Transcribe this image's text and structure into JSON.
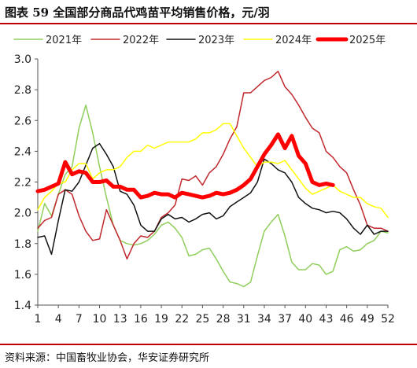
{
  "figure": {
    "title": "图表 59  全国部分商品代鸡苗平均销售价格，元/羽",
    "source": "资料来源：中国畜牧业协会，华安证券研究所"
  },
  "chart_data": {
    "type": "line",
    "title": "全国部分商品代鸡苗平均销售价格，元/羽",
    "xlabel": "",
    "ylabel": "",
    "xlim": [
      1,
      52
    ],
    "ylim": [
      1.4,
      3.0
    ],
    "x_ticks": [
      1,
      4,
      7,
      10,
      13,
      16,
      19,
      22,
      25,
      28,
      31,
      34,
      37,
      40,
      43,
      46,
      49,
      52
    ],
    "y_ticks": [
      1.4,
      1.6,
      1.8,
      2.0,
      2.2,
      2.4,
      2.6,
      2.8,
      3.0
    ],
    "grid": false,
    "legend_position": "top",
    "series": [
      {
        "name": "2021年",
        "color": "#8fce5a",
        "width": 1.5,
        "values": [
          1.88,
          2.06,
          1.98,
          2.12,
          2.25,
          2.3,
          2.55,
          2.7,
          2.52,
          2.3,
          2.1,
          1.92,
          1.82,
          1.8,
          1.79,
          1.8,
          1.82,
          1.86,
          1.92,
          1.94,
          1.9,
          1.84,
          1.72,
          1.73,
          1.76,
          1.77,
          1.7,
          1.62,
          1.55,
          1.54,
          1.52,
          1.55,
          1.72,
          1.88,
          1.94,
          1.99,
          1.85,
          1.68,
          1.63,
          1.63,
          1.67,
          1.66,
          1.6,
          1.62,
          1.76,
          1.78,
          1.75,
          1.76,
          1.8,
          1.82,
          1.88,
          1.87
        ]
      },
      {
        "name": "2022年",
        "color": "#c0282d",
        "width": 1.5,
        "values": [
          1.9,
          1.95,
          1.97,
          2.12,
          2.15,
          2.12,
          1.98,
          1.88,
          1.82,
          1.83,
          2.02,
          1.92,
          1.82,
          1.7,
          1.8,
          1.85,
          1.84,
          1.88,
          1.97,
          2.0,
          2.05,
          2.22,
          2.21,
          2.24,
          2.18,
          2.26,
          2.3,
          2.38,
          2.48,
          2.56,
          2.78,
          2.78,
          2.82,
          2.86,
          2.88,
          2.92,
          2.82,
          2.77,
          2.7,
          2.62,
          2.55,
          2.52,
          2.4,
          2.36,
          2.3,
          2.26,
          2.15,
          2.05,
          1.92,
          1.9,
          1.9,
          1.88
        ]
      },
      {
        "name": "2023年",
        "color": "#111111",
        "width": 1.5,
        "values": [
          1.84,
          1.85,
          1.73,
          1.95,
          2.15,
          2.14,
          2.2,
          2.31,
          2.42,
          2.45,
          2.38,
          2.3,
          2.14,
          2.12,
          2.05,
          1.92,
          1.88,
          1.88,
          1.96,
          1.99,
          1.96,
          1.97,
          1.94,
          1.96,
          1.99,
          2.0,
          1.96,
          1.98,
          2.04,
          2.07,
          2.1,
          2.13,
          2.2,
          2.35,
          2.32,
          2.28,
          2.26,
          2.2,
          2.1,
          2.06,
          2.03,
          2.02,
          2.0,
          2.01,
          2.0,
          1.96,
          1.9,
          1.86,
          1.92,
          1.86,
          1.88,
          1.88
        ]
      },
      {
        "name": "2024年",
        "color": "#ffff00",
        "width": 1.5,
        "values": [
          2.02,
          2.1,
          2.14,
          2.19,
          2.2,
          2.28,
          2.32,
          2.32,
          2.22,
          2.26,
          2.28,
          2.28,
          2.3,
          2.36,
          2.4,
          2.4,
          2.44,
          2.42,
          2.44,
          2.46,
          2.46,
          2.46,
          2.46,
          2.48,
          2.52,
          2.52,
          2.54,
          2.58,
          2.58,
          2.5,
          2.42,
          2.36,
          2.3,
          2.33,
          2.33,
          2.32,
          2.34,
          2.28,
          2.22,
          2.16,
          2.12,
          2.14,
          2.16,
          2.18,
          2.14,
          2.12,
          2.1,
          2.1,
          2.06,
          2.04,
          2.03,
          1.97
        ]
      },
      {
        "name": "2025年",
        "color": "#ff0000",
        "width": 5,
        "values": [
          2.14,
          2.15,
          2.17,
          2.19,
          2.33,
          2.25,
          2.27,
          2.26,
          2.2,
          2.2,
          2.21,
          2.17,
          2.17,
          2.15,
          2.15,
          2.1,
          2.11,
          2.13,
          2.12,
          2.12,
          2.1,
          2.13,
          2.12,
          2.11,
          2.1,
          2.11,
          2.13,
          2.12,
          2.13,
          2.15,
          2.18,
          2.22,
          2.3,
          2.38,
          2.44,
          2.51,
          2.42,
          2.5,
          2.37,
          2.32,
          2.2,
          2.18,
          2.19,
          2.18
        ]
      }
    ]
  }
}
